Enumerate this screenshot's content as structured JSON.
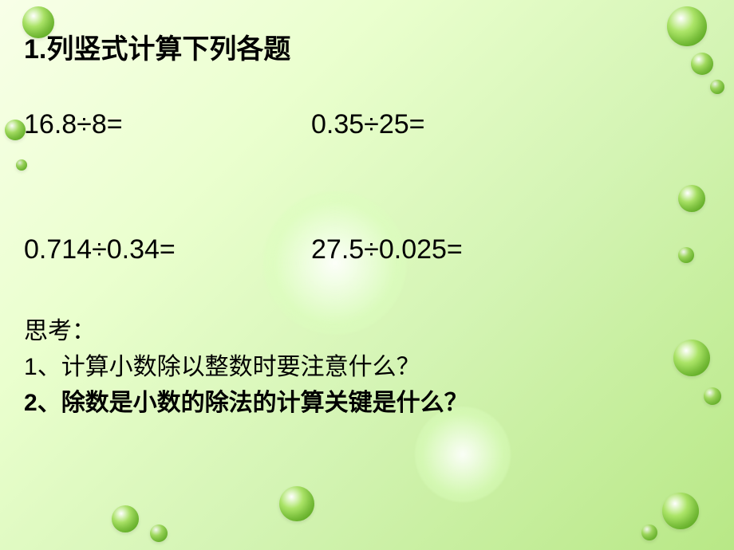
{
  "background": {
    "gradient_colors": [
      "#f8ffe8",
      "#eaffce",
      "#d4f4b4",
      "#b8e886"
    ],
    "bubble_fill_light": "#aee66a",
    "bubble_fill_dark": "#6fbf2e"
  },
  "title": {
    "number": "1.",
    "text": "列竖式计算下列各题"
  },
  "equations": {
    "row1": {
      "left": "16.8÷8=",
      "right": "0.35÷25="
    },
    "row2": {
      "left": "0.714÷0.34=",
      "right": "27.5÷0.025="
    }
  },
  "think": {
    "heading": "思考：",
    "q1": {
      "num": "1",
      "sep": "、",
      "text": "计算小数除以整数时要注意什么？",
      "bold": false
    },
    "q2": {
      "num": "2",
      "sep": "、",
      "text": "除数是小数的除法的计算关键是什么？",
      "bold": true
    }
  },
  "typography": {
    "title_fontsize": 34,
    "equation_fontsize": 34,
    "think_fontsize": 30,
    "text_color": "#000000"
  }
}
